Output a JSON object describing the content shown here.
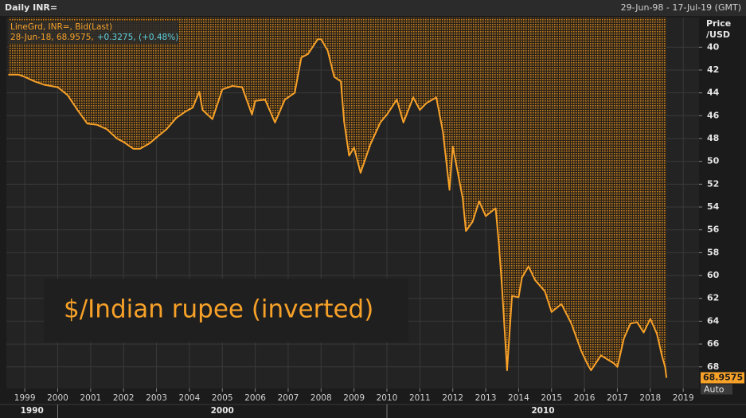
{
  "chart_data": {
    "type": "line",
    "title": "Daily INR=",
    "subtitle": "29-Jun-98 - 17-Jul-19 (GMT)",
    "status": "28-Jun-18, 68.9575,",
    "change": "+0.3275, (+0.48%)",
    "y_label": [
      "Price",
      "/USD"
    ],
    "annotation": "$/Indian rupee (inverted)",
    "last_price": 68.9575,
    "scale_mode": "Auto",
    "y_inverted": true,
    "grid": true,
    "x": [
      1998.5,
      1998.8,
      1999.0,
      1999.3,
      1999.6,
      2000.0,
      2000.3,
      2000.6,
      2000.9,
      2001.2,
      2001.5,
      2001.8,
      2002.0,
      2002.3,
      2002.5,
      2002.8,
      2003.0,
      2003.3,
      2003.6,
      2003.9,
      2004.1,
      2004.3,
      2004.4,
      2004.7,
      2005.0,
      2005.3,
      2005.6,
      2005.9,
      2006.0,
      2006.3,
      2006.6,
      2006.9,
      2007.2,
      2007.4,
      2007.6,
      2007.9,
      2008.0,
      2008.2,
      2008.4,
      2008.6,
      2008.7,
      2008.85,
      2009.0,
      2009.2,
      2009.5,
      2009.8,
      2010.0,
      2010.3,
      2010.5,
      2010.8,
      2011.0,
      2011.2,
      2011.5,
      2011.7,
      2011.9,
      2012.0,
      2012.3,
      2012.4,
      2012.6,
      2012.8,
      2013.0,
      2013.3,
      2013.4,
      2013.5,
      2013.65,
      2013.8,
      2014.0,
      2014.1,
      2014.3,
      2014.5,
      2014.8,
      2015.0,
      2015.3,
      2015.6,
      2015.9,
      2016.1,
      2016.2,
      2016.5,
      2016.9,
      2017.0,
      2017.2,
      2017.4,
      2017.6,
      2017.8,
      2018.0,
      2018.2,
      2018.35,
      2018.45,
      2018.49
    ],
    "series": [
      {
        "name": "LineGrd, INR=, Bid(Last)",
        "color": "#f7a128",
        "values": [
          42.4,
          42.4,
          42.6,
          43.0,
          43.3,
          43.5,
          44.2,
          45.5,
          46.7,
          46.8,
          47.2,
          48.0,
          48.3,
          48.9,
          48.9,
          48.4,
          47.9,
          47.2,
          46.2,
          45.6,
          45.3,
          43.9,
          45.5,
          46.3,
          43.7,
          43.4,
          43.5,
          45.9,
          44.7,
          44.6,
          46.6,
          44.6,
          44.0,
          40.9,
          40.6,
          39.3,
          39.3,
          40.3,
          42.6,
          43.0,
          46.5,
          49.5,
          48.8,
          51.0,
          48.5,
          46.6,
          45.9,
          44.6,
          46.6,
          44.4,
          45.5,
          44.9,
          44.4,
          47.4,
          52.5,
          48.7,
          53.2,
          56.1,
          55.3,
          53.5,
          54.8,
          54.1,
          57.2,
          61.2,
          68.3,
          61.8,
          61.9,
          60.2,
          59.2,
          60.4,
          61.4,
          63.2,
          62.5,
          64.2,
          66.6,
          67.8,
          68.3,
          67.0,
          67.7,
          68.0,
          65.5,
          64.2,
          64.1,
          65.0,
          63.8,
          65.1,
          67.0,
          68.0,
          68.9575
        ]
      }
    ],
    "xlim": [
      1998.44,
      2019.48
    ],
    "xticks": [
      1999,
      2000,
      2001,
      2002,
      2003,
      2004,
      2005,
      2006,
      2007,
      2008,
      2009,
      2010,
      2011,
      2012,
      2013,
      2014,
      2015,
      2016,
      2017,
      2018,
      2019
    ],
    "x_period_ticks": [
      2000,
      2010
    ],
    "x_period_labels": [
      "1990",
      "2000",
      "2010"
    ],
    "ylim": [
      37.4,
      69.9
    ],
    "yticks": [
      40,
      42,
      44,
      46,
      48,
      50,
      52,
      54,
      56,
      58,
      60,
      62,
      64,
      66,
      68
    ]
  }
}
